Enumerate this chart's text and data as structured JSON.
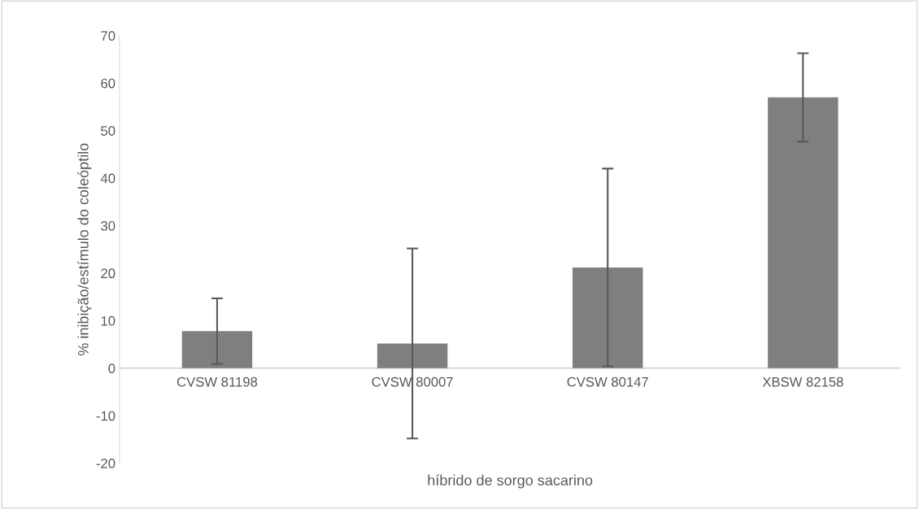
{
  "chart_data": {
    "type": "bar",
    "categories": [
      "CVSW 81198",
      "CVSW 80007",
      "CVSW 80147",
      "XBSW 82158"
    ],
    "values": [
      7.8,
      5.2,
      21.2,
      57.0
    ],
    "errors": [
      6.9,
      20.0,
      20.8,
      9.3
    ],
    "color": "#7f7f7f",
    "xlabel": "híbrido de sorgo sacarino",
    "ylabel": "% inibição/estímulo do coleóptilo",
    "ylim": [
      -20,
      70
    ],
    "yticks": [
      -20,
      -10,
      0,
      10,
      20,
      30,
      40,
      50,
      60,
      70
    ],
    "grid": false,
    "legend": false
  }
}
